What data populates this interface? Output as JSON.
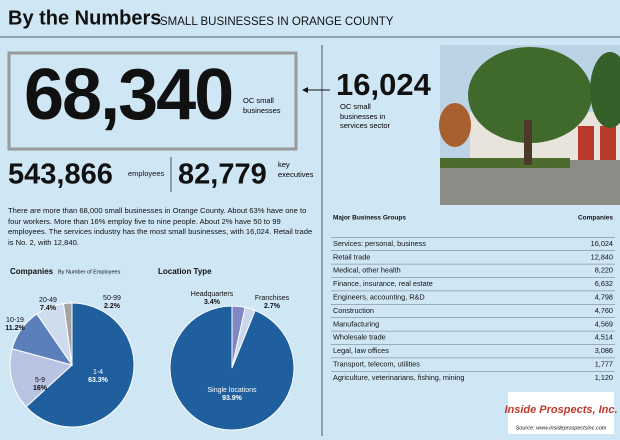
{
  "header": {
    "title": "By the Numbers",
    "subtitle": "SMALL BUSINESSES IN ORANGE COUNTY"
  },
  "stats": {
    "total": {
      "value": "68,340",
      "label": "OC small businesses"
    },
    "services": {
      "value": "16,024",
      "label": "OC small businesses in services sector"
    },
    "employees": {
      "value": "543,866",
      "label": "employees"
    },
    "executives": {
      "value": "82,779",
      "label": "key executives"
    }
  },
  "intro": "There are more than 68,000 small businesses in Orange County. About 63% have one to four workers. More than 16% employ five to nine people. About 2% have 50 to 99 employees. The services industry has the most small businesses, with 16,024. Retail trade is No. 2, with 12,840.",
  "chart_data": [
    {
      "type": "pie",
      "title": "Companies",
      "subtitle": "By Number of Employees",
      "categories": [
        "1-4",
        "5-9",
        "10-19",
        "20-49",
        "50-99"
      ],
      "values": [
        63.3,
        16,
        11.2,
        7.4,
        2.2
      ],
      "value_labels": [
        "63.3%",
        "16%",
        "11.2%",
        "7.4%",
        "2.2%"
      ],
      "colors": [
        "#1f5f9e",
        "#b9c3e2",
        "#5a7fba",
        "#cfdcee",
        "#a3a3a3"
      ]
    },
    {
      "type": "pie",
      "title": "Location Type",
      "categories": [
        "Headquarters",
        "Franchises",
        "Single locations"
      ],
      "values": [
        3.4,
        2.7,
        93.9
      ],
      "value_labels": [
        "3.4%",
        "2.7%",
        "93.9%"
      ],
      "colors": [
        "#7d88c4",
        "#c9d6ec",
        "#1f5f9e"
      ]
    }
  ],
  "table": {
    "columns": [
      "Major Business Groups",
      "Companies"
    ],
    "rows": [
      [
        "Services: personal, business",
        "16,024"
      ],
      [
        "Retail trade",
        "12,840"
      ],
      [
        "Medical, other health",
        "8,220"
      ],
      [
        "Finance, insurance, real estate",
        "6,632"
      ],
      [
        "Engineers, accounting, R&D",
        "4,798"
      ],
      [
        "Construction",
        "4,760"
      ],
      [
        "Manufacturing",
        "4,569"
      ],
      [
        "Wholesale trade",
        "4,514"
      ],
      [
        "Legal, law offices",
        "3,086"
      ],
      [
        "Transport, telecom, utilities",
        "1,777"
      ],
      [
        "Agriculture, veterinarians, fishing, mining",
        "1,120"
      ]
    ]
  },
  "footer": {
    "logo": "Inside Prospects, Inc.",
    "source": "Source: www.insideprospectsinc.com"
  }
}
